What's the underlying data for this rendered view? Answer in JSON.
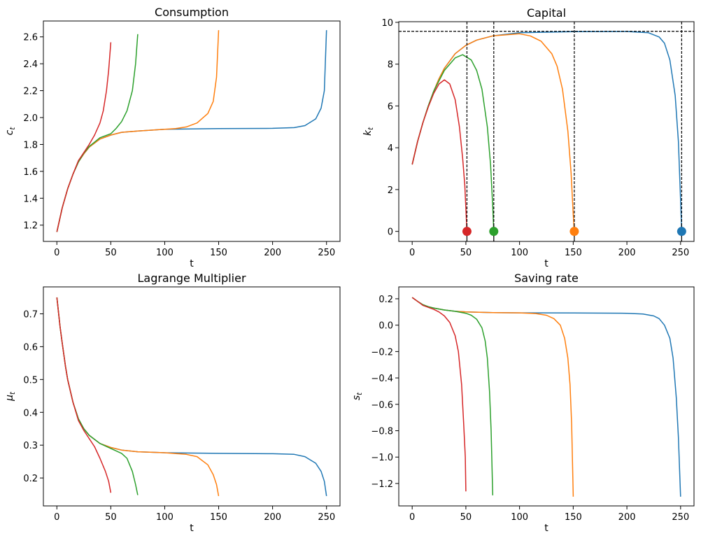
{
  "chart_data": [
    {
      "type": "line",
      "title": "Consumption",
      "xlabel": "t",
      "ylabel": {
        "base": "c",
        "sub": "t"
      },
      "xlim": [
        -12.5,
        262.5
      ],
      "ylim": [
        1.079,
        2.718
      ],
      "xticks": [
        0,
        50,
        100,
        150,
        200,
        250
      ],
      "xtick_labels": [
        "0",
        "50",
        "100",
        "150",
        "200",
        "250"
      ],
      "yticks": [
        1.2,
        1.4,
        1.6,
        1.8,
        2.0,
        2.2,
        2.4,
        2.6
      ],
      "ytick_labels": [
        "1.2",
        "1.4",
        "1.6",
        "1.8",
        "2.0",
        "2.2",
        "2.4",
        "2.6"
      ],
      "grid": false,
      "series": [
        {
          "color": "#1f77b4",
          "x": [
            0,
            5,
            10,
            15,
            20,
            25,
            30,
            40,
            50,
            60,
            75,
            100,
            150,
            200,
            220,
            230,
            240,
            245,
            248,
            250
          ],
          "y": [
            1.15,
            1.33,
            1.47,
            1.58,
            1.67,
            1.73,
            1.78,
            1.84,
            1.87,
            1.89,
            1.9,
            1.913,
            1.918,
            1.92,
            1.925,
            1.94,
            1.99,
            2.07,
            2.2,
            2.65
          ]
        },
        {
          "color": "#ff7f0e",
          "x": [
            0,
            5,
            10,
            15,
            20,
            25,
            30,
            40,
            50,
            60,
            75,
            100,
            110,
            120,
            130,
            140,
            145,
            148,
            150
          ],
          "y": [
            1.15,
            1.33,
            1.47,
            1.58,
            1.67,
            1.73,
            1.78,
            1.84,
            1.87,
            1.89,
            1.9,
            1.913,
            1.918,
            1.93,
            1.96,
            2.03,
            2.12,
            2.3,
            2.65
          ]
        },
        {
          "color": "#2ca02c",
          "x": [
            0,
            5,
            10,
            15,
            20,
            25,
            30,
            40,
            50,
            55,
            60,
            65,
            70,
            73,
            75
          ],
          "y": [
            1.15,
            1.33,
            1.47,
            1.58,
            1.67,
            1.735,
            1.785,
            1.85,
            1.88,
            1.92,
            1.97,
            2.05,
            2.2,
            2.4,
            2.62
          ]
        },
        {
          "color": "#d62728",
          "x": [
            0,
            5,
            10,
            15,
            20,
            25,
            30,
            35,
            40,
            43,
            46,
            48,
            50
          ],
          "y": [
            1.15,
            1.33,
            1.47,
            1.58,
            1.68,
            1.74,
            1.8,
            1.87,
            1.96,
            2.05,
            2.2,
            2.35,
            2.56
          ]
        }
      ]
    },
    {
      "type": "line",
      "title": "Capital",
      "xlabel": "t",
      "ylabel": {
        "base": "k",
        "sub": "t"
      },
      "xlim": [
        -12.5,
        262.5
      ],
      "ylim": [
        -0.48,
        10.03
      ],
      "xticks": [
        0,
        50,
        100,
        150,
        200,
        250
      ],
      "xtick_labels": [
        "0",
        "50",
        "100",
        "150",
        "200",
        "250"
      ],
      "yticks": [
        0,
        2,
        4,
        6,
        8,
        10
      ],
      "ytick_labels": [
        "0",
        "2",
        "4",
        "6",
        "8",
        "10"
      ],
      "grid": false,
      "hlines": [
        9.57
      ],
      "vlines": [
        51,
        76,
        151,
        251
      ],
      "series": [
        {
          "color": "#1f77b4",
          "x": [
            0,
            5,
            10,
            15,
            20,
            25,
            30,
            40,
            50,
            60,
            75,
            100,
            150,
            200,
            220,
            230,
            235,
            240,
            245,
            248,
            250,
            251
          ],
          "y": [
            3.2,
            4.3,
            5.2,
            6.0,
            6.7,
            7.3,
            7.8,
            8.5,
            8.9,
            9.15,
            9.35,
            9.5,
            9.55,
            9.56,
            9.5,
            9.3,
            9.0,
            8.2,
            6.5,
            4.3,
            1.5,
            0
          ],
          "end_marker": [
            251,
            0
          ]
        },
        {
          "color": "#ff7f0e",
          "x": [
            0,
            5,
            10,
            15,
            20,
            25,
            30,
            40,
            50,
            60,
            75,
            100,
            110,
            120,
            130,
            135,
            140,
            145,
            148,
            150,
            151
          ],
          "y": [
            3.2,
            4.3,
            5.2,
            6.0,
            6.7,
            7.3,
            7.8,
            8.5,
            8.9,
            9.15,
            9.35,
            9.45,
            9.35,
            9.1,
            8.5,
            7.9,
            6.8,
            4.8,
            2.8,
            0.8,
            0
          ],
          "end_marker": [
            151,
            0
          ]
        },
        {
          "color": "#2ca02c",
          "x": [
            0,
            5,
            10,
            15,
            20,
            25,
            30,
            40,
            47,
            55,
            60,
            65,
            70,
            73,
            75,
            76
          ],
          "y": [
            3.2,
            4.3,
            5.2,
            6.0,
            6.7,
            7.2,
            7.7,
            8.3,
            8.45,
            8.2,
            7.7,
            6.8,
            5.0,
            3.2,
            1.2,
            0
          ],
          "end_marker": [
            76,
            0
          ]
        },
        {
          "color": "#d62728",
          "x": [
            0,
            5,
            10,
            15,
            20,
            25,
            30,
            35,
            40,
            44,
            47,
            49,
            51
          ],
          "y": [
            3.2,
            4.3,
            5.2,
            5.95,
            6.6,
            7.05,
            7.25,
            7.05,
            6.3,
            5.0,
            3.5,
            2.2,
            0
          ],
          "end_marker": [
            51,
            0
          ]
        }
      ]
    },
    {
      "type": "line",
      "title": "Lagrange Multiplier",
      "xlabel": "t",
      "ylabel": {
        "base": "μ",
        "sub": "t"
      },
      "xlim": [
        -12.5,
        262.5
      ],
      "ylim": [
        0.115,
        0.782
      ],
      "xticks": [
        0,
        50,
        100,
        150,
        200,
        250
      ],
      "xtick_labels": [
        "0",
        "50",
        "100",
        "150",
        "200",
        "250"
      ],
      "yticks": [
        0.2,
        0.3,
        0.4,
        0.5,
        0.6,
        0.7
      ],
      "ytick_labels": [
        "0.2",
        "0.3",
        "0.4",
        "0.5",
        "0.6",
        "0.7"
      ],
      "grid": false,
      "series": [
        {
          "color": "#1f77b4",
          "x": [
            0,
            3,
            5,
            8,
            10,
            15,
            20,
            25,
            30,
            40,
            50,
            60,
            75,
            100,
            150,
            200,
            220,
            230,
            240,
            245,
            248,
            250
          ],
          "y": [
            0.75,
            0.66,
            0.61,
            0.54,
            0.5,
            0.43,
            0.38,
            0.35,
            0.33,
            0.305,
            0.293,
            0.285,
            0.28,
            0.277,
            0.275,
            0.274,
            0.272,
            0.265,
            0.245,
            0.22,
            0.19,
            0.145
          ]
        },
        {
          "color": "#ff7f0e",
          "x": [
            0,
            3,
            5,
            8,
            10,
            15,
            20,
            25,
            30,
            40,
            50,
            60,
            75,
            100,
            120,
            130,
            140,
            145,
            148,
            150
          ],
          "y": [
            0.75,
            0.66,
            0.61,
            0.54,
            0.5,
            0.43,
            0.38,
            0.35,
            0.33,
            0.305,
            0.293,
            0.285,
            0.28,
            0.277,
            0.272,
            0.265,
            0.24,
            0.21,
            0.18,
            0.145
          ]
        },
        {
          "color": "#2ca02c",
          "x": [
            0,
            3,
            5,
            8,
            10,
            15,
            20,
            25,
            30,
            40,
            50,
            60,
            65,
            70,
            73,
            75
          ],
          "y": [
            0.75,
            0.66,
            0.61,
            0.54,
            0.5,
            0.43,
            0.38,
            0.35,
            0.33,
            0.305,
            0.29,
            0.275,
            0.26,
            0.22,
            0.18,
            0.148
          ]
        },
        {
          "color": "#d62728",
          "x": [
            0,
            3,
            5,
            8,
            10,
            15,
            20,
            25,
            30,
            35,
            40,
            45,
            48,
            50
          ],
          "y": [
            0.75,
            0.66,
            0.61,
            0.54,
            0.5,
            0.43,
            0.375,
            0.345,
            0.32,
            0.295,
            0.26,
            0.22,
            0.19,
            0.155
          ]
        }
      ]
    },
    {
      "type": "line",
      "title": "Saving rate",
      "xlabel": "t",
      "ylabel": {
        "base": "s",
        "sub": "t"
      },
      "xlim": [
        -12.5,
        262.5
      ],
      "ylim": [
        -1.37,
        0.29
      ],
      "xticks": [
        0,
        50,
        100,
        150,
        200,
        250
      ],
      "xtick_labels": [
        "0",
        "50",
        "100",
        "150",
        "200",
        "250"
      ],
      "yticks": [
        -1.2,
        -1.0,
        -0.8,
        -0.6,
        -0.4,
        -0.2,
        0.0,
        0.2
      ],
      "ytick_labels": [
        "−1.2",
        "−1.0",
        "−0.8",
        "−0.6",
        "−0.4",
        "−0.2",
        "0.0",
        "0.2"
      ],
      "grid": false,
      "series": [
        {
          "color": "#1f77b4",
          "x": [
            0,
            5,
            10,
            15,
            20,
            30,
            40,
            50,
            75,
            100,
            150,
            200,
            215,
            225,
            230,
            235,
            240,
            243,
            246,
            248,
            250
          ],
          "y": [
            0.21,
            0.18,
            0.155,
            0.14,
            0.13,
            0.115,
            0.105,
            0.1,
            0.095,
            0.093,
            0.092,
            0.09,
            0.085,
            0.07,
            0.05,
            0.0,
            -0.1,
            -0.25,
            -0.55,
            -0.85,
            -1.3
          ]
        },
        {
          "color": "#ff7f0e",
          "x": [
            0,
            5,
            10,
            15,
            20,
            30,
            40,
            50,
            75,
            100,
            115,
            125,
            132,
            138,
            142,
            145,
            147,
            148.5,
            150
          ],
          "y": [
            0.21,
            0.18,
            0.155,
            0.14,
            0.13,
            0.115,
            0.105,
            0.1,
            0.095,
            0.093,
            0.088,
            0.075,
            0.05,
            0.0,
            -0.1,
            -0.25,
            -0.45,
            -0.75,
            -1.3
          ]
        },
        {
          "color": "#2ca02c",
          "x": [
            0,
            5,
            10,
            15,
            20,
            30,
            40,
            50,
            55,
            60,
            65,
            68,
            70,
            72,
            73.5,
            75
          ],
          "y": [
            0.21,
            0.18,
            0.155,
            0.14,
            0.13,
            0.115,
            0.105,
            0.09,
            0.075,
            0.045,
            -0.02,
            -0.12,
            -0.25,
            -0.5,
            -0.8,
            -1.29
          ]
        },
        {
          "color": "#d62728",
          "x": [
            0,
            5,
            10,
            20,
            25,
            30,
            35,
            40,
            43,
            46,
            48,
            49.5,
            50
          ],
          "y": [
            0.21,
            0.18,
            0.15,
            0.12,
            0.1,
            0.07,
            0.02,
            -0.08,
            -0.2,
            -0.45,
            -0.75,
            -1.0,
            -1.26
          ]
        }
      ]
    }
  ]
}
